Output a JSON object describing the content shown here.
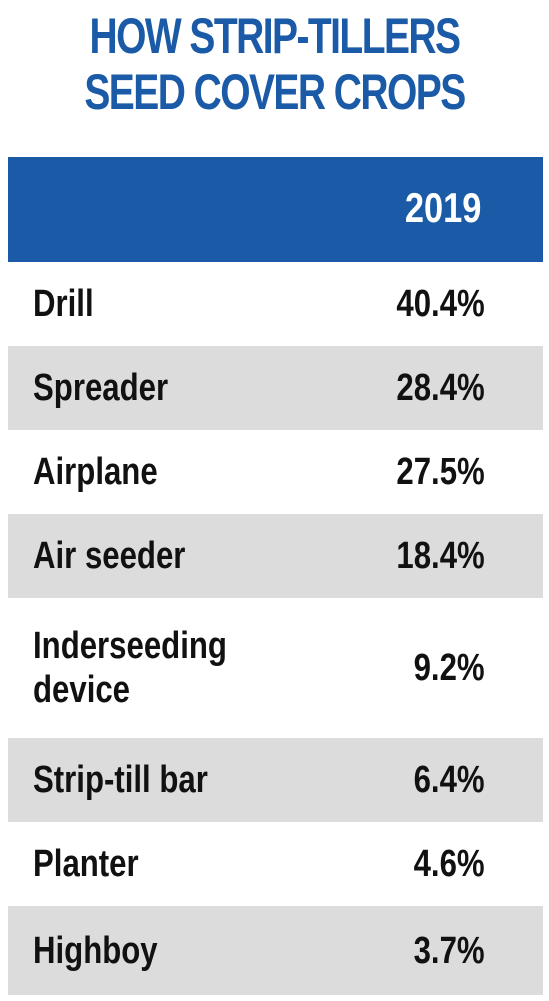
{
  "chart_data": {
    "type": "table",
    "title_lines": [
      "HOW STRIP-TILLERS",
      "SEED COVER CROPS"
    ],
    "column_header": "2019",
    "rows": [
      {
        "label": [
          "Drill"
        ],
        "value": "40.4%"
      },
      {
        "label": [
          "Spreader"
        ],
        "value": "28.4%"
      },
      {
        "label": [
          "Airplane"
        ],
        "value": "27.5%"
      },
      {
        "label": [
          "Air seeder"
        ],
        "value": "18.4%"
      },
      {
        "label": [
          "Inderseeding",
          "device"
        ],
        "value": "9.2%"
      },
      {
        "label": [
          "Strip-till bar"
        ],
        "value": "6.4%"
      },
      {
        "label": [
          "Planter"
        ],
        "value": "4.6%"
      },
      {
        "label": [
          "Highboy"
        ],
        "value": "3.7%"
      }
    ],
    "colors": {
      "title": "#1a5aa6",
      "header_background": "#1a5aa6",
      "header_text": "#ffffff",
      "row_shade": "#dcdcdc",
      "row_text": "#111111"
    }
  }
}
